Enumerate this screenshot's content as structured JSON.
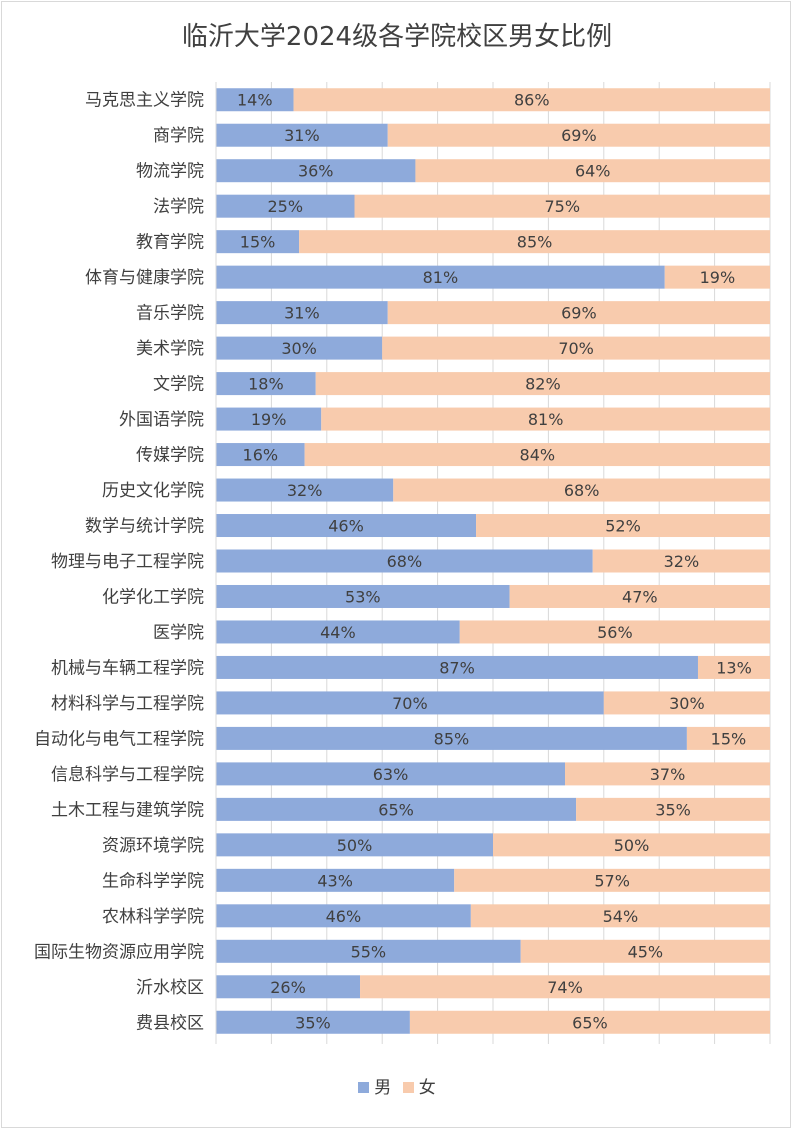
{
  "chart_data": {
    "type": "bar",
    "orientation": "horizontal",
    "stacked": "percent",
    "title": "临沂大学2024级各学院校区男女比例",
    "categories": [
      "马克思主义学院",
      "商学院",
      "物流学院",
      "法学院",
      "教育学院",
      "体育与健康学院",
      "音乐学院",
      "美术学院",
      "文学院",
      "外国语学院",
      "传媒学院",
      "历史文化学院",
      "数学与统计学院",
      "物理与电子工程学院",
      "化学化工学院",
      "医学院",
      "机械与车辆工程学院",
      "材料科学与工程学院",
      "自动化与电气工程学院",
      "信息科学与工程学院",
      "土木工程与建筑学院",
      "资源环境学院",
      "生命科学学院",
      "农林科学学院",
      "国际生物资源应用学院",
      "沂水校区",
      "费县校区"
    ],
    "series": [
      {
        "name": "男",
        "color": "#8eaadb",
        "values": [
          14,
          31,
          36,
          25,
          15,
          81,
          31,
          30,
          18,
          19,
          16,
          32,
          46,
          68,
          53,
          44,
          87,
          70,
          85,
          63,
          65,
          50,
          43,
          46,
          55,
          26,
          35
        ]
      },
      {
        "name": "女",
        "color": "#f8cbad",
        "values": [
          86,
          69,
          64,
          75,
          85,
          19,
          69,
          70,
          82,
          81,
          84,
          68,
          52,
          32,
          47,
          56,
          13,
          30,
          15,
          37,
          35,
          50,
          57,
          54,
          45,
          74,
          65
        ]
      }
    ],
    "xlim": [
      0,
      100
    ],
    "grid": true,
    "legend_position": "bottom"
  }
}
